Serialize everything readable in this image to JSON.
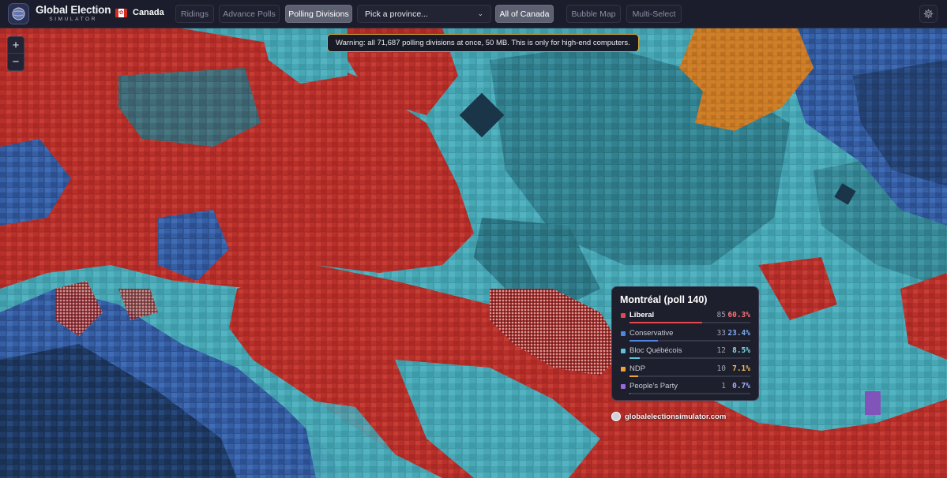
{
  "app": {
    "title": "Global Election",
    "subtitle": "SIMULATOR"
  },
  "country": {
    "name": "Canada",
    "flag": "canada-flag-icon"
  },
  "toolbar": {
    "ridings": "Ridings",
    "advance_polls": "Advance Polls",
    "polling_divisions": "Polling Divisions",
    "province_placeholder": "Pick a province...",
    "all_of_canada": "All of Canada",
    "bubble_map": "Bubble Map",
    "multi_select": "Multi-Select",
    "active_view": "Polling Divisions",
    "active_scope": "All of Canada"
  },
  "zoom": {
    "in": "+",
    "out": "−"
  },
  "warning": "Warning: all 71,687 polling divisions at once, 50 MB. This is only for high-end computers.",
  "tooltip": {
    "title": "Montréal (poll 140)",
    "rows": [
      {
        "party": "Liberal",
        "votes": "85",
        "pct": "60.3%",
        "share": 0.603,
        "color": "#e4474d",
        "pct_color": "#ff6f72"
      },
      {
        "party": "Conservative",
        "votes": "33",
        "pct": "23.4%",
        "share": 0.234,
        "color": "#4f87e0",
        "pct_color": "#7eaaf0"
      },
      {
        "party": "Bloc Québécois",
        "votes": "12",
        "pct": "8.5%",
        "share": 0.085,
        "color": "#5cc4d8",
        "pct_color": "#7fdcec"
      },
      {
        "party": "NDP",
        "votes": "10",
        "pct": "7.1%",
        "share": 0.071,
        "color": "#f0a23a",
        "pct_color": "#f6bb62"
      },
      {
        "party": "People's Party",
        "votes": "1",
        "pct": "0.7%",
        "share": 0.007,
        "color": "#9a6ad8",
        "pct_color": "#9fb0ff"
      }
    ]
  },
  "watermark": "globalelectionsimulator.com",
  "map_colors": {
    "liberal": "#c9352f",
    "conservative": "#3a66b3",
    "bloc": "#4fb6c5",
    "ndp": "#e08a2c",
    "dark": "#243a52"
  }
}
